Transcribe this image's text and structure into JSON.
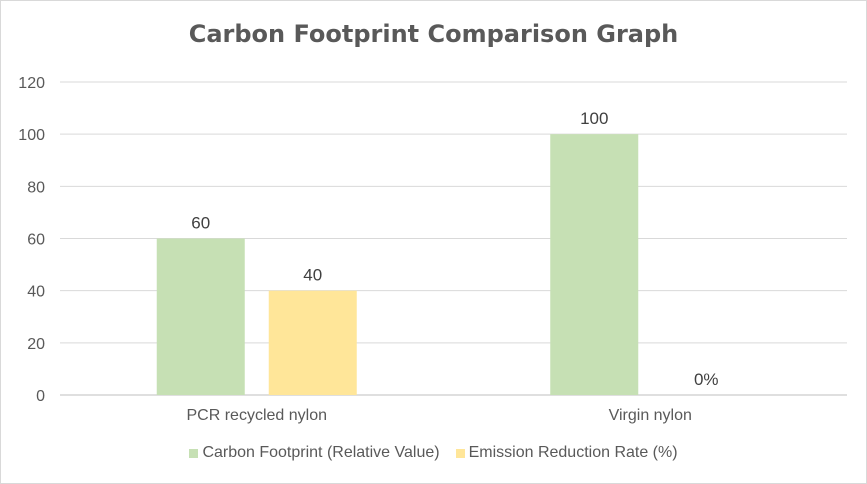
{
  "chart_data": {
    "type": "bar",
    "title": "Carbon Footprint Comparison Graph",
    "xlabel": "",
    "ylabel": "",
    "categories": [
      "PCR recycled nylon",
      "Virgin nylon"
    ],
    "ylim": [
      0,
      120
    ],
    "yticks": [
      0,
      20,
      40,
      60,
      80,
      100,
      120
    ],
    "grid": true,
    "legend_position": "bottom",
    "series": [
      {
        "name": "Carbon Footprint (Relative Value)",
        "values": [
          60,
          100
        ],
        "labels": [
          "60",
          "100"
        ],
        "color": "#c6e0b4"
      },
      {
        "name": "Emission Reduction Rate (%)",
        "values": [
          40,
          0
        ],
        "labels": [
          "40",
          "0%"
        ],
        "color": "#ffe699"
      }
    ]
  }
}
